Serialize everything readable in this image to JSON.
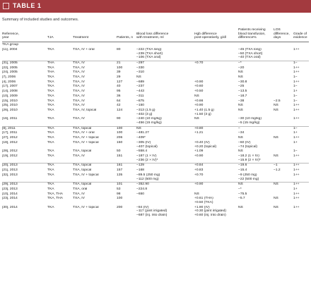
{
  "banner": {
    "title": "TABLE 1"
  },
  "caption": "Summary of included studies and outcomes.",
  "headers": {
    "ref": [
      "Reference,",
      "year"
    ],
    "tja": [
      "TJA"
    ],
    "treatment": [
      "Treatment"
    ],
    "patients": [
      "Patients, n"
    ],
    "blood": [
      "Blood loss difference",
      "with treatment, ml"
    ],
    "hgb": [
      "Hgb difference",
      "post-operatively, g/dl"
    ],
    "transfusion": [
      "Patients receiving",
      "blood transfusion,",
      "difference%"
    ],
    "los": [
      "LOS",
      "difference,",
      "days"
    ],
    "grade": [
      "Grade of",
      "evidence"
    ]
  },
  "group_label": "TKA group",
  "rows": [
    {
      "ref": "[11], 2004",
      "tja": "TKA",
      "treatment": "TXA, IV + oral",
      "patients": "80",
      "blood": [
        "−222 (TXA long)",
        "−239 (TXA short)",
        "−106 (TXA oral)"
      ],
      "hgb": [
        ""
      ],
      "transfusion": [
        "−45 (TXA long)",
        "−50 (TXA short)",
        "−40 (TXA oral)"
      ],
      "los": [
        ""
      ],
      "grade": "1++"
    },
    {
      "ref": "[31], 2005",
      "tja": "THA",
      "treatment": "TXA, IV",
      "patients": "21",
      "blood": [
        "−297"
      ],
      "hgb": [
        "+0.70"
      ],
      "transfusion": [
        "−*"
      ],
      "los": [
        ""
      ],
      "grade": "1−"
    },
    {
      "ref": "[22], 2005",
      "tja": "TKA",
      "treatment": "TXA, IV",
      "patients": "100",
      "blood": [
        "−330"
      ],
      "hgb": [
        ""
      ],
      "transfusion": [
        "−20"
      ],
      "los": [
        ""
      ],
      "grade": "1++"
    },
    {
      "ref": "[24], 2005",
      "tja": "THA",
      "treatment": "TXA, IV",
      "patients": "39",
      "blood": [
        "−310"
      ],
      "hgb": [
        ""
      ],
      "transfusion": [
        "NS"
      ],
      "los": [
        ""
      ],
      "grade": "1++"
    },
    {
      "ref": "[7], 2006",
      "tja": "TKA",
      "treatment": "TXA, IV",
      "patients": "29",
      "blood": [
        "NS"
      ],
      "hgb": [
        ""
      ],
      "transfusion": [
        "NS"
      ],
      "los": [
        ""
      ],
      "grade": "1−"
    },
    {
      "ref": "[4], 2006",
      "tja": "TKA",
      "treatment": "TXA, IV",
      "patients": "127",
      "blood": [
        "−689"
      ],
      "hgb": [
        "+0.90"
      ],
      "transfusion": [
        "−30.8"
      ],
      "los": [
        ""
      ],
      "grade": "1++"
    },
    {
      "ref": "[17], 2007",
      "tja": "TKA",
      "treatment": "TXA, IV",
      "patients": "40",
      "blood": [
        "−237"
      ],
      "hgb": [
        "+0.60"
      ],
      "transfusion": [
        "−25"
      ],
      "los": [
        ""
      ],
      "grade": "1−"
    },
    {
      "ref": "[14], 2008",
      "tja": "TKA",
      "treatment": "TXA, IV",
      "patients": "95",
      "blood": [
        "−443"
      ],
      "hgb": [
        "+0.50"
      ],
      "transfusion": [
        "−13.5"
      ],
      "los": [
        ""
      ],
      "grade": "1+"
    },
    {
      "ref": "[10], 2009",
      "tja": "TKA",
      "treatment": "TXA, IV",
      "patients": "36",
      "blood": [
        "−311"
      ],
      "hgb": [
        "NS"
      ],
      "transfusion": [
        "−18.7"
      ],
      "los": [
        ""
      ],
      "grade": "1−"
    },
    {
      "ref": "[15], 2010",
      "tja": "TKA",
      "treatment": "TXA, IV",
      "patients": "64",
      "blood": [
        "−875"
      ],
      "hgb": [
        "+0.66"
      ],
      "transfusion": [
        "−38"
      ],
      "los": [
        "−2.5"
      ],
      "grade": "1−"
    },
    {
      "ref": "[25], 2010",
      "tja": "TKA",
      "treatment": "TXA, IV",
      "patients": "42",
      "blood": [
        "−150"
      ],
      "hgb": [
        "+0.90"
      ],
      "transfusion": [
        "NS"
      ],
      "los": [
        "NS"
      ],
      "grade": "1++"
    },
    {
      "ref": "[26], 2010",
      "tja": "TKA",
      "treatment": "TXA, IV, topical",
      "patients": "124",
      "blood": [
        "−313 (1.5 g)",
        "−402 (3 g)"
      ],
      "hgb": [
        "+1.40 (1.5 g)",
        "+1.50 (3 g)"
      ],
      "transfusion": [
        "NS"
      ],
      "los": [
        "NS"
      ],
      "grade": "1++"
    },
    {
      "ref": "[16], 2011",
      "tja": "TKA",
      "treatment": "TXA, IV",
      "patients": "90",
      "blood": [
        "−240 (10 mg/kg)",
        "−456 (15 mg/kg)"
      ],
      "hgb": [
        "NS"
      ],
      "transfusion": [
        "−30 (10 mg/kg)",
        "−5 (15 mg/kg)"
      ],
      "los": [
        ""
      ],
      "grade": "1++"
    },
    {
      "ref": "[8], 2011",
      "tja": "TKA",
      "treatment": "TXA, topical",
      "patients": "100",
      "blood": [
        "NS"
      ],
      "hgb": [
        "+0.80"
      ],
      "transfusion": [
        "−"
      ],
      "los": [
        ""
      ],
      "grade": "1−"
    },
    {
      "ref": "[17], 2011",
      "tja": "TKA",
      "treatment": "TXA, IV + oral",
      "patients": "100",
      "blood": [
        "−481.27"
      ],
      "hgb": [
        "+1.21"
      ],
      "transfusion": [
        "−34"
      ],
      "los": [
        ""
      ],
      "grade": "1+"
    },
    {
      "ref": "[27], 2012",
      "tja": "TKA",
      "treatment": "TXA, IV + topical",
      "patients": "206",
      "blood": [
        "−409*"
      ],
      "hgb": [
        ""
      ],
      "transfusion": [
        "NS"
      ],
      "los": [
        "NS"
      ],
      "grade": "1++"
    },
    {
      "ref": "[18], 2012",
      "tja": "TKA",
      "treatment": "TXA, IV + topical",
      "patients": "150",
      "blood": [
        "−305 (IV)",
        "−407 (topical)"
      ],
      "hgb": [
        "+0.40 (IV)",
        "+0.20 (topical)"
      ],
      "transfusion": [
        "−60 (IV)",
        "−74 (topical)"
      ],
      "los": [
        ""
      ],
      "grade": "1+"
    },
    {
      "ref": "[28], 2012",
      "tja": "TKA",
      "treatment": "TXA, topical",
      "patients": "50",
      "blood": [
        "−558.4"
      ],
      "hgb": [
        "+1.09"
      ],
      "transfusion": [
        "NS"
      ],
      "los": [
        ""
      ],
      "grade": "1−"
    },
    {
      "ref": "[19], 2012",
      "tja": "TKA",
      "treatment": "TXA, IV",
      "patients": "151",
      "blood": [
        "−187 (1 × IV)",
        "−236 (2 × IV)*"
      ],
      "hgb": [
        "+0.90"
      ],
      "transfusion": [
        "−18.2 (1 × IV)",
        "−15.9 (2 × IV)*"
      ],
      "los": [
        "NS"
      ],
      "grade": "1++"
    },
    {
      "ref": "[20], 2013",
      "tja": "TKA",
      "treatment": "TXA, topical",
      "patients": "161",
      "blood": [
        "−129"
      ],
      "hgb": [
        "+0.84"
      ],
      "transfusion": [
        "−19.6"
      ],
      "los": [
        "−1"
      ],
      "grade": "1++"
    },
    {
      "ref": "[21], 2013",
      "tja": "TKA",
      "treatment": "TXA, topical",
      "patients": "157",
      "blood": [
        "−168"
      ],
      "hgb": [
        "+0.83"
      ],
      "transfusion": [
        "−15.4"
      ],
      "los": [
        "−1.2"
      ],
      "grade": "1++"
    },
    {
      "ref": "[32], 2013",
      "tja": "TKA",
      "treatment": "TXA, IV + topical",
      "patients": "135",
      "blood": [
        "−89.5 (250 mg)",
        "−112 (500 mg)"
      ],
      "hgb": [
        "+0.70"
      ],
      "transfusion": [
        "−9 (250 mg)",
        "−22 (500 mg)"
      ],
      "los": [
        ""
      ],
      "grade": "1++"
    },
    {
      "ref": "[29], 2013",
      "tja": "TKA",
      "treatment": "TXA, topical",
      "patients": "101",
      "blood": [
        "−352.90"
      ],
      "hgb": [
        "+0.90"
      ],
      "transfusion": [
        "NS"
      ],
      "los": [
        "NS"
      ],
      "grade": "1++"
    },
    {
      "ref": "[23], 2013",
      "tja": "TKA",
      "treatment": "TXA, oral",
      "patients": "53",
      "blood": [
        "−224.8"
      ],
      "hgb": [
        ""
      ],
      "transfusion": [
        "−*"
      ],
      "los": [
        ""
      ],
      "grade": "1+"
    },
    {
      "ref": "[10], 2014",
      "tja": "TKA, THA",
      "treatment": "TXA, IV",
      "patients": "98",
      "blood": [
        "−650"
      ],
      "hgb": [
        "NS"
      ],
      "transfusion": [
        "−75.5"
      ],
      "los": [
        ""
      ],
      "grade": "1++"
    },
    {
      "ref": "[23], 2014",
      "tja": "TKA, THA",
      "treatment": "TXA, IV",
      "patients": "100",
      "blood": [
        ""
      ],
      "hgb": [
        "+0.61 (THA)",
        "+0.50 (TKA)"
      ],
      "transfusion": [
        "−5.7"
      ],
      "los": [
        "NS"
      ],
      "grade": "1++"
    },
    {
      "ref": "[30], 2014",
      "tja": "TKA",
      "treatment": "TXA, IV + topical",
      "patients": "200",
      "blood": [
        "−84 (IV)",
        "−117 (joint irrigated)",
        "−687 (inj. into drain)"
      ],
      "hgb": [
        "+1.90 (IV)",
        "+0.30 (joint irrigated)",
        "+0.60 (inj. into drain)"
      ],
      "transfusion": [
        "NS"
      ],
      "los": [
        "NS"
      ],
      "grade": "1++"
    }
  ]
}
